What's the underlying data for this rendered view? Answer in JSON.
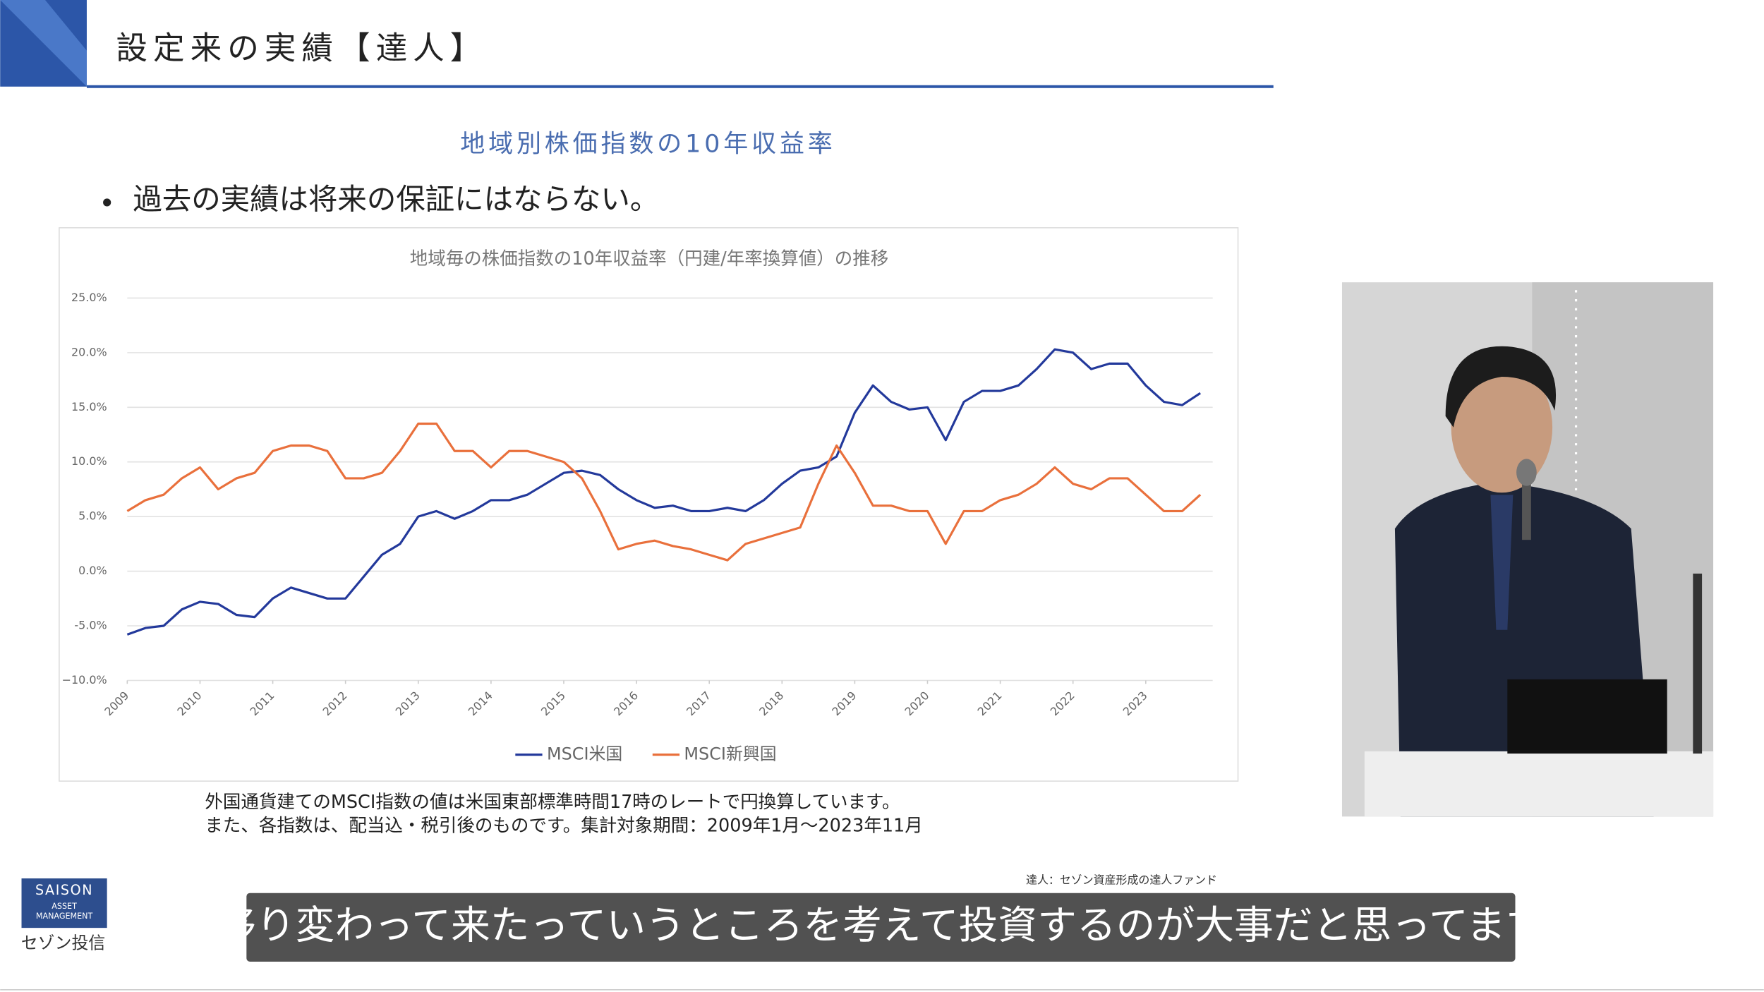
{
  "header": {
    "title": "設定来の実績【達人】"
  },
  "slide": {
    "title": "地域別株価指数の10年収益率",
    "bullet": "過去の実績は将来の保証にはならない。"
  },
  "chart_data": {
    "type": "line",
    "title": "地域毎の株価指数の10年収益率（円建/年率換算値）の推移",
    "x": [
      2009,
      2009.25,
      2009.5,
      2009.75,
      2010,
      2010.25,
      2010.5,
      2010.75,
      2011,
      2011.25,
      2011.5,
      2011.75,
      2012,
      2012.25,
      2012.5,
      2012.75,
      2013,
      2013.25,
      2013.5,
      2013.75,
      2014,
      2014.25,
      2014.5,
      2014.75,
      2015,
      2015.25,
      2015.5,
      2015.75,
      2016,
      2016.25,
      2016.5,
      2016.75,
      2017,
      2017.25,
      2017.5,
      2017.75,
      2018,
      2018.25,
      2018.5,
      2018.75,
      2019,
      2019.25,
      2019.5,
      2019.75,
      2020,
      2020.25,
      2020.5,
      2020.75,
      2021,
      2021.25,
      2021.5,
      2021.75,
      2022,
      2022.25,
      2022.5,
      2022.75,
      2023,
      2023.25,
      2023.5,
      2023.75
    ],
    "series": [
      {
        "name": "MSCI米国",
        "color": "#23399b",
        "values": [
          -5.8,
          -5.2,
          -5.0,
          -3.5,
          -2.8,
          -3.0,
          -4.0,
          -4.2,
          -2.5,
          -1.5,
          -2.0,
          -2.5,
          -2.5,
          -0.5,
          1.5,
          2.5,
          5.0,
          5.5,
          4.8,
          5.5,
          6.5,
          6.5,
          7.0,
          8.0,
          9.0,
          9.2,
          8.8,
          7.5,
          6.5,
          5.8,
          6.0,
          5.5,
          5.5,
          5.8,
          5.5,
          6.5,
          8.0,
          9.2,
          9.5,
          10.5,
          14.5,
          17.0,
          15.5,
          14.8,
          15.0,
          12.0,
          15.5,
          16.5,
          16.5,
          17.0,
          18.5,
          20.3,
          20.0,
          18.5,
          19.0,
          19.0,
          17.0,
          15.5,
          15.2,
          16.3
        ]
      },
      {
        "name": "MSCI新興国",
        "color": "#e9703c",
        "values": [
          5.5,
          6.5,
          7.0,
          8.5,
          9.5,
          7.5,
          8.5,
          9.0,
          11.0,
          11.5,
          11.5,
          11.0,
          8.5,
          8.5,
          9.0,
          11.0,
          13.5,
          13.5,
          11.0,
          11.0,
          9.5,
          11.0,
          11.0,
          10.5,
          10.0,
          8.5,
          5.5,
          2.0,
          2.5,
          2.8,
          2.3,
          2.0,
          1.5,
          1.0,
          2.5,
          3.0,
          3.5,
          4.0,
          8.0,
          11.5,
          9.0,
          6.0,
          6.0,
          5.5,
          5.5,
          2.5,
          5.5,
          5.5,
          6.5,
          7.0,
          8.0,
          9.5,
          8.0,
          7.5,
          8.5,
          8.5,
          7.0,
          5.5,
          5.5,
          7.0
        ]
      }
    ],
    "xlim": [
      2009,
      2023.92
    ],
    "xticks": [
      2009,
      2010,
      2011,
      2012,
      2013,
      2014,
      2015,
      2016,
      2017,
      2018,
      2019,
      2020,
      2021,
      2022,
      2023
    ],
    "ylim": [
      -10,
      25
    ],
    "yticks": [
      {
        "value": -10,
        "label": "−10.0%"
      },
      {
        "value": -5,
        "label": "-5.0%"
      },
      {
        "value": 0,
        "label": "0.0%"
      },
      {
        "value": 5,
        "label": "5.0%"
      },
      {
        "value": 10,
        "label": "10.0%"
      },
      {
        "value": 15,
        "label": "15.0%"
      },
      {
        "value": 20,
        "label": "20.0%"
      },
      {
        "value": 25,
        "label": "25.0%"
      }
    ],
    "grid": true
  },
  "notes": [
    "外国通貨建てのMSCI指数の値は米国東部標準時間17時のレートで円換算しています。",
    "また、各指数は、配当込・税引後のものです。集計対象期間：2009年1月～2023年11月"
  ],
  "footer": {
    "fund": "達人：セゾン資産形成の達人ファンド",
    "logo": [
      "SAISON",
      "ASSET",
      "MANAGEMENT"
    ],
    "company": "セゾン投信"
  },
  "caption": "移り変わって来たっていうところを考えて投資するのが大事だと思ってます"
}
